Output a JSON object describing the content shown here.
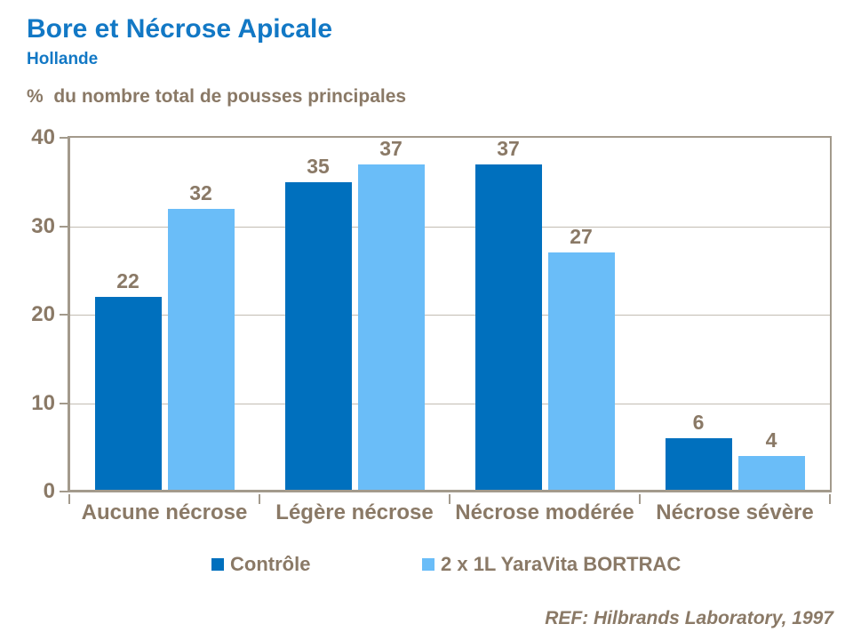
{
  "header": {
    "title": "Bore et Nécrose Apicale",
    "subtitle": "Hollande"
  },
  "colors": {
    "title_blue": "#1278C5",
    "text_brown": "#8A7966",
    "axis_line": "#A39A8C",
    "grid_line": "#C2BCB3",
    "background": "#FFFFFF"
  },
  "chart_data": {
    "type": "bar",
    "title": "Bore et Nécrose Apicale",
    "subtitle": "Hollande",
    "ylabel": "%  du nombre total de pousses principales",
    "categories": [
      "Aucune nécrose",
      "Légère nécrose",
      "Nécrose modérée",
      "Nécrose sévère"
    ],
    "series": [
      {
        "name": "Contrôle",
        "color": "#0070BE",
        "values": [
          22,
          35,
          37,
          6
        ]
      },
      {
        "name": "2 x 1L YaraVita BORTRAC",
        "color": "#6ABDF8",
        "values": [
          32,
          37,
          27,
          4
        ]
      }
    ],
    "ylim": [
      0,
      40
    ],
    "yticks": [
      0,
      10,
      20,
      30,
      40
    ],
    "grid": true,
    "legend_position": "bottom",
    "reference": "REF: Hilbrands Laboratory, 1997"
  }
}
